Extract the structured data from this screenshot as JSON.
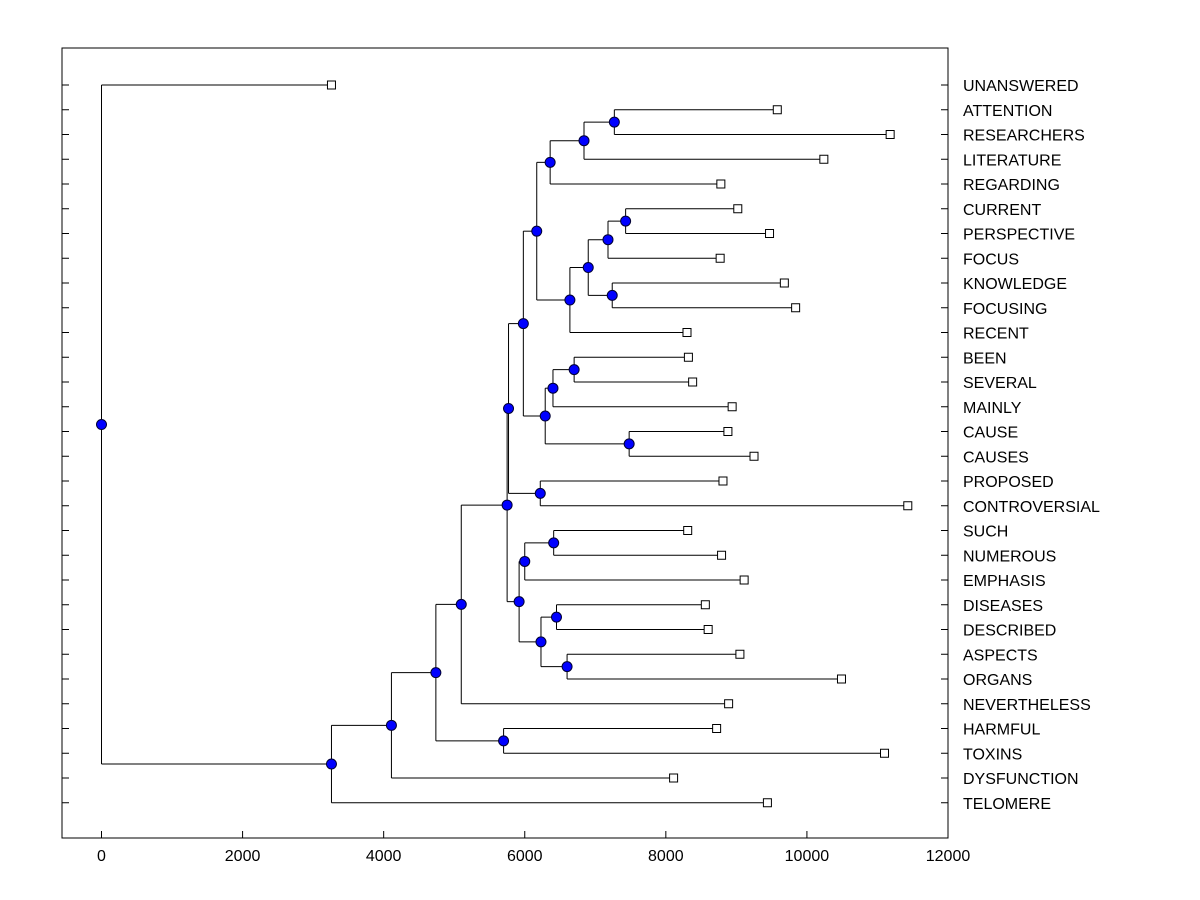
{
  "chart_data": {
    "type": "dendrogram",
    "title": "",
    "xlabel": "",
    "ylabel": "",
    "xlim": [
      -560,
      12000
    ],
    "xticks": [
      0,
      2000,
      4000,
      6000,
      8000,
      10000,
      12000
    ],
    "grid": false,
    "leaves": [
      {
        "label": "UNANSWERED",
        "value": 3260
      },
      {
        "label": "ATTENTION",
        "value": 9580
      },
      {
        "label": "RESEARCHERS",
        "value": 11180
      },
      {
        "label": "LITERATURE",
        "value": 10240
      },
      {
        "label": "REGARDING",
        "value": 8780
      },
      {
        "label": "CURRENT",
        "value": 9020
      },
      {
        "label": "PERSPECTIVE",
        "value": 9470
      },
      {
        "label": "FOCUS",
        "value": 8770
      },
      {
        "label": "KNOWLEDGE",
        "value": 9680
      },
      {
        "label": "FOCUSING",
        "value": 9840
      },
      {
        "label": "RECENT",
        "value": 8300
      },
      {
        "label": "BEEN",
        "value": 8320
      },
      {
        "label": "SEVERAL",
        "value": 8380
      },
      {
        "label": "MAINLY",
        "value": 8940
      },
      {
        "label": "CAUSE",
        "value": 8880
      },
      {
        "label": "CAUSES",
        "value": 9250
      },
      {
        "label": "PROPOSED",
        "value": 8810
      },
      {
        "label": "CONTROVERSIAL",
        "value": 11430
      },
      {
        "label": "SUCH",
        "value": 8310
      },
      {
        "label": "NUMEROUS",
        "value": 8790
      },
      {
        "label": "EMPHASIS",
        "value": 9110
      },
      {
        "label": "DISEASES",
        "value": 8560
      },
      {
        "label": "DESCRIBED",
        "value": 8600
      },
      {
        "label": "ASPECTS",
        "value": 9050
      },
      {
        "label": "ORGANS",
        "value": 10490
      },
      {
        "label": "NEVERTHELESS",
        "value": 8890
      },
      {
        "label": "HARMFUL",
        "value": 8720
      },
      {
        "label": "TOXINS",
        "value": 11100
      },
      {
        "label": "DYSFUNCTION",
        "value": 8110
      },
      {
        "label": "TELOMERE",
        "value": 9440
      }
    ],
    "nodes": [
      {
        "id": "n1",
        "value": 7270,
        "children": [
          1,
          2
        ]
      },
      {
        "id": "n2",
        "value": 6840,
        "children": [
          "n1",
          3
        ]
      },
      {
        "id": "n3",
        "value": 6360,
        "children": [
          "n2",
          4
        ]
      },
      {
        "id": "n4",
        "value": 7430,
        "children": [
          5,
          6
        ]
      },
      {
        "id": "n5",
        "value": 7180,
        "children": [
          "n4",
          7
        ]
      },
      {
        "id": "n6",
        "value": 7240,
        "children": [
          8,
          9
        ]
      },
      {
        "id": "n7",
        "value": 6900,
        "children": [
          "n5",
          "n6"
        ]
      },
      {
        "id": "n8",
        "value": 6640,
        "children": [
          "n7",
          10
        ]
      },
      {
        "id": "n9",
        "value": 6170,
        "children": [
          "n3",
          "n8"
        ]
      },
      {
        "id": "n10",
        "value": 6700,
        "children": [
          11,
          12
        ]
      },
      {
        "id": "n11",
        "value": 6400,
        "children": [
          "n10",
          13
        ]
      },
      {
        "id": "n12",
        "value": 7480,
        "children": [
          14,
          15
        ]
      },
      {
        "id": "n13",
        "value": 6290,
        "children": [
          "n11",
          "n12"
        ]
      },
      {
        "id": "n14",
        "value": 5980,
        "children": [
          "n9",
          "n13"
        ]
      },
      {
        "id": "n15",
        "value": 6220,
        "children": [
          16,
          17
        ]
      },
      {
        "id": "n16",
        "value": 5770,
        "children": [
          "n14",
          "n15"
        ]
      },
      {
        "id": "n17",
        "value": 6410,
        "children": [
          18,
          19
        ]
      },
      {
        "id": "n18",
        "value": 6000,
        "children": [
          "n17",
          20
        ]
      },
      {
        "id": "n19",
        "value": 6450,
        "children": [
          21,
          22
        ]
      },
      {
        "id": "n20",
        "value": 6600,
        "children": [
          23,
          24
        ]
      },
      {
        "id": "n21",
        "value": 6230,
        "children": [
          "n19",
          "n20"
        ]
      },
      {
        "id": "n22",
        "value": 5920,
        "children": [
          "n18",
          "n21"
        ]
      },
      {
        "id": "n23",
        "value": 5750,
        "children": [
          "n16",
          "n22"
        ]
      },
      {
        "id": "n24",
        "value": 5100,
        "children": [
          "n23",
          25
        ]
      },
      {
        "id": "n25",
        "value": 5700,
        "children": [
          26,
          27
        ]
      },
      {
        "id": "n26",
        "value": 4740,
        "children": [
          "n24",
          "n25"
        ]
      },
      {
        "id": "n27",
        "value": 4110,
        "children": [
          "n26",
          28
        ]
      },
      {
        "id": "n28",
        "value": 3260,
        "children": [
          "n27",
          29
        ]
      },
      {
        "id": "n29",
        "value": 0,
        "children": [
          0,
          "n28"
        ]
      }
    ]
  },
  "colors": {
    "node_fill": "#0000ff",
    "line": "#000000",
    "leaf_fill": "#ffffff",
    "background": "#ffffff"
  }
}
